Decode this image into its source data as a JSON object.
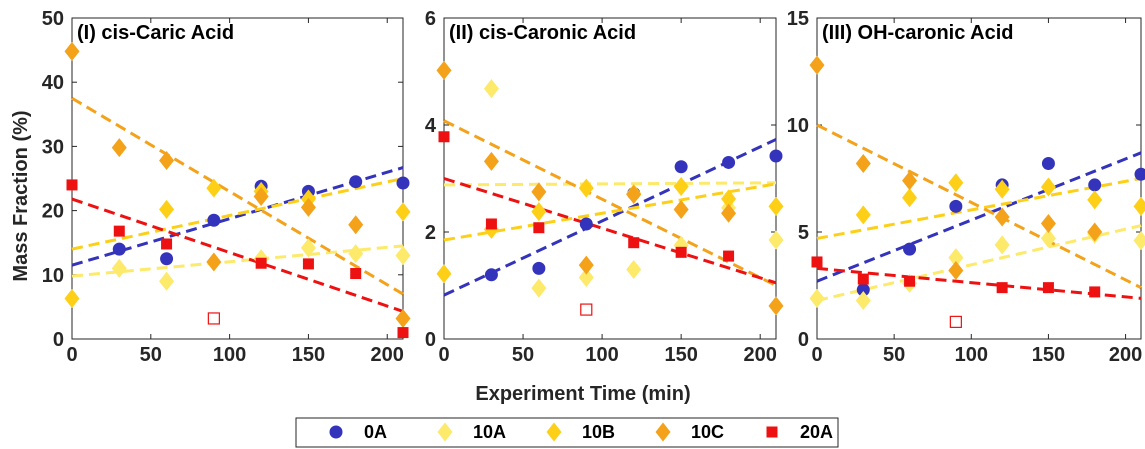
{
  "figure": {
    "xlabel": "Experiment Time (min)",
    "ylabel": "Mass Fraction (%)"
  },
  "legend": {
    "placement": "bottom-center",
    "entries": [
      {
        "name": "0A",
        "marker": "circle",
        "color": "#3333bb"
      },
      {
        "name": "10A",
        "marker": "diamond",
        "color": "#fde96a"
      },
      {
        "name": "10B",
        "marker": "diamond",
        "color": "#fdd017"
      },
      {
        "name": "10C",
        "marker": "diamond",
        "color": "#f4a21a"
      },
      {
        "name": "20A",
        "marker": "square",
        "color": "#ee1111"
      }
    ]
  },
  "chart_data": [
    {
      "type": "scatter",
      "title": "(I) cis-Caric Acid",
      "xlim": [
        0,
        210
      ],
      "ylim": [
        0,
        50
      ],
      "xticks": [
        0,
        50,
        100,
        150,
        200
      ],
      "yticks": [
        0,
        10,
        20,
        30,
        40,
        50
      ],
      "series": [
        {
          "name": "0A",
          "marker": "circle",
          "color": "#3333bb",
          "x": [
            30,
            60,
            90,
            120,
            150,
            180,
            210
          ],
          "y": [
            14.0,
            12.5,
            18.5,
            23.8,
            23.0,
            24.5,
            24.3
          ],
          "fit": [
            11.5,
            26.7
          ]
        },
        {
          "name": "10A",
          "marker": "diamond",
          "color": "#fde96a",
          "x": [
            30,
            60,
            120,
            150,
            180,
            210
          ],
          "y": [
            11.0,
            9.0,
            12.5,
            14.2,
            13.3,
            13.0
          ],
          "fit": [
            9.8,
            14.5
          ]
        },
        {
          "name": "10B",
          "marker": "diamond",
          "color": "#fdd017",
          "x": [
            0,
            60,
            90,
            120,
            150,
            210
          ],
          "y": [
            6.3,
            20.2,
            23.5,
            23.0,
            21.8,
            19.8
          ],
          "fit": [
            14.0,
            25.0
          ]
        },
        {
          "name": "10C",
          "marker": "diamond",
          "color": "#f4a21a",
          "x": [
            0,
            30,
            60,
            90,
            120,
            150,
            180,
            210
          ],
          "y": [
            44.8,
            29.8,
            27.8,
            12.0,
            22.2,
            20.5,
            17.8,
            3.2
          ],
          "fit": [
            37.5,
            7.0
          ]
        },
        {
          "name": "20A",
          "marker": "square",
          "color": "#ee1111",
          "x": [
            0,
            30,
            60,
            120,
            150,
            180,
            210
          ],
          "y": [
            24.0,
            16.8,
            14.8,
            11.8,
            11.7,
            10.2,
            1.0
          ],
          "fit": [
            21.8,
            4.3
          ]
        }
      ],
      "outliers": [
        {
          "series": "20A",
          "x": 90,
          "y": 3.2
        }
      ]
    },
    {
      "type": "scatter",
      "title": "(II) cis-Caronic Acid",
      "xlim": [
        0,
        210
      ],
      "ylim": [
        0,
        6
      ],
      "xticks": [
        0,
        50,
        100,
        150,
        200
      ],
      "yticks": [
        0,
        2,
        4,
        6
      ],
      "series": [
        {
          "name": "0A",
          "marker": "circle",
          "color": "#3333bb",
          "x": [
            30,
            60,
            90,
            120,
            150,
            180,
            210
          ],
          "y": [
            1.2,
            1.32,
            2.15,
            2.72,
            3.22,
            3.3,
            3.42
          ],
          "fit": [
            0.82,
            3.73
          ]
        },
        {
          "name": "10A",
          "marker": "diamond",
          "color": "#fde96a",
          "x": [
            30,
            60,
            90,
            120,
            150,
            180,
            210
          ],
          "y": [
            4.68,
            0.95,
            1.15,
            1.3,
            1.75,
            2.45,
            1.85
          ],
          "fit": [
            2.88,
            2.92
          ]
        },
        {
          "name": "10B",
          "marker": "diamond",
          "color": "#fdd017",
          "x": [
            0,
            30,
            60,
            90,
            120,
            150,
            180,
            210
          ],
          "y": [
            1.22,
            2.05,
            2.38,
            2.82,
            2.72,
            2.85,
            2.62,
            2.48
          ],
          "fit": [
            1.85,
            2.9
          ]
        },
        {
          "name": "10C",
          "marker": "diamond",
          "color": "#f4a21a",
          "x": [
            0,
            30,
            60,
            90,
            120,
            150,
            180,
            210
          ],
          "y": [
            5.02,
            3.32,
            2.75,
            1.38,
            2.7,
            2.42,
            2.35,
            0.62
          ],
          "fit": [
            4.08,
            1.0
          ]
        },
        {
          "name": "20A",
          "marker": "square",
          "color": "#ee1111",
          "x": [
            0,
            30,
            60,
            120,
            150,
            180
          ],
          "y": [
            3.78,
            2.15,
            2.08,
            1.8,
            1.62,
            1.55
          ],
          "fit": [
            3.0,
            1.05
          ]
        }
      ],
      "outliers": [
        {
          "series": "20A",
          "x": 90,
          "y": 0.55
        }
      ]
    },
    {
      "type": "scatter",
      "title": "(III) OH-caronic Acid",
      "xlim": [
        0,
        210
      ],
      "ylim": [
        0,
        15
      ],
      "xticks": [
        0,
        50,
        100,
        150,
        200
      ],
      "yticks": [
        0,
        5,
        10,
        15
      ],
      "series": [
        {
          "name": "0A",
          "marker": "circle",
          "color": "#3333bb",
          "x": [
            30,
            60,
            90,
            120,
            150,
            180,
            210
          ],
          "y": [
            2.3,
            4.2,
            6.2,
            7.2,
            8.2,
            7.2,
            7.7
          ],
          "fit": [
            2.7,
            8.7
          ]
        },
        {
          "name": "10A",
          "marker": "diamond",
          "color": "#fde96a",
          "x": [
            0,
            30,
            60,
            90,
            120,
            150,
            180,
            210
          ],
          "y": [
            1.9,
            1.8,
            2.6,
            3.8,
            4.4,
            4.7,
            4.9,
            4.6
          ],
          "fit": [
            1.8,
            5.3
          ]
        },
        {
          "name": "10B",
          "marker": "diamond",
          "color": "#fdd017",
          "x": [
            30,
            60,
            90,
            120,
            150,
            180,
            210
          ],
          "y": [
            5.8,
            6.6,
            7.3,
            7.0,
            7.1,
            6.5,
            6.2
          ],
          "fit": [
            4.7,
            7.5
          ]
        },
        {
          "name": "10C",
          "marker": "diamond",
          "color": "#f4a21a",
          "x": [
            0,
            30,
            60,
            90,
            120,
            150,
            180
          ],
          "y": [
            12.8,
            8.2,
            7.4,
            3.2,
            5.7,
            5.4,
            5.0
          ],
          "fit": [
            10.0,
            2.4
          ]
        },
        {
          "name": "20A",
          "marker": "square",
          "color": "#ee1111",
          "x": [
            0,
            30,
            60,
            120,
            150,
            180
          ],
          "y": [
            3.6,
            2.8,
            2.7,
            2.4,
            2.4,
            2.2
          ],
          "fit": [
            3.3,
            1.9
          ]
        }
      ],
      "outliers": [
        {
          "series": "20A",
          "x": 90,
          "y": 0.8
        }
      ]
    }
  ]
}
